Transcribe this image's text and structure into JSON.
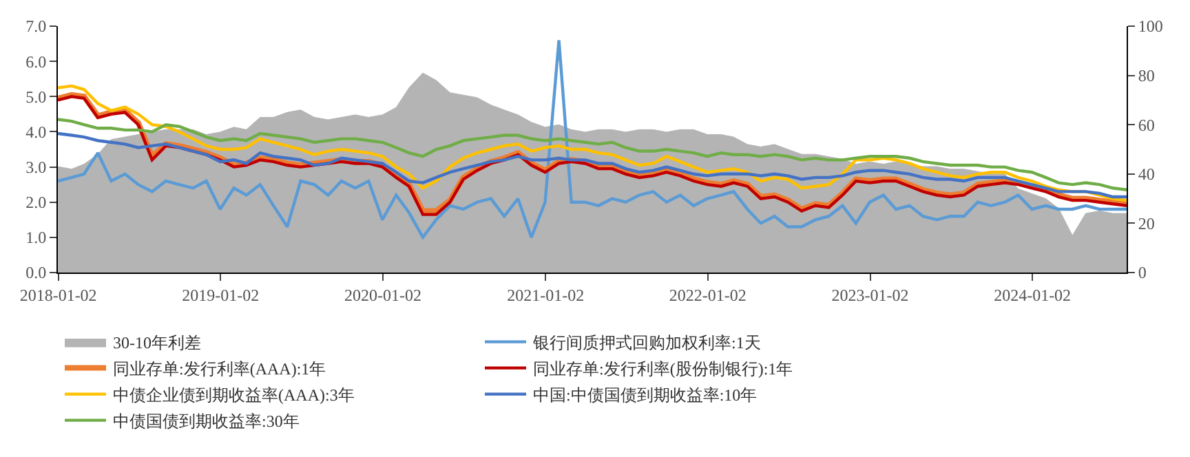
{
  "chart_data": {
    "type": "line",
    "x": [
      "2018-01",
      "2018-02",
      "2018-03",
      "2018-04",
      "2018-05",
      "2018-06",
      "2018-07",
      "2018-08",
      "2018-09",
      "2018-10",
      "2018-11",
      "2018-12",
      "2019-01",
      "2019-02",
      "2019-03",
      "2019-04",
      "2019-05",
      "2019-06",
      "2019-07",
      "2019-08",
      "2019-09",
      "2019-10",
      "2019-11",
      "2019-12",
      "2020-01",
      "2020-02",
      "2020-03",
      "2020-04",
      "2020-05",
      "2020-06",
      "2020-07",
      "2020-08",
      "2020-09",
      "2020-10",
      "2020-11",
      "2020-12",
      "2021-01",
      "2021-02",
      "2021-03",
      "2021-04",
      "2021-05",
      "2021-06",
      "2021-07",
      "2021-08",
      "2021-09",
      "2021-10",
      "2021-11",
      "2021-12",
      "2022-01",
      "2022-02",
      "2022-03",
      "2022-04",
      "2022-05",
      "2022-06",
      "2022-07",
      "2022-08",
      "2022-09",
      "2022-10",
      "2022-11",
      "2022-12",
      "2023-01",
      "2023-02",
      "2023-03",
      "2023-04",
      "2023-05",
      "2023-06",
      "2023-07",
      "2023-08",
      "2023-09",
      "2023-10",
      "2023-11",
      "2023-12",
      "2024-01",
      "2024-02",
      "2024-03",
      "2024-04",
      "2024-05",
      "2024-06",
      "2024-07",
      "2024-08"
    ],
    "series": [
      {
        "name": "30-10年利差",
        "type": "area",
        "axis": "y2",
        "color": "#b4b4b4",
        "values": [
          43,
          42,
          44,
          48,
          54,
          55,
          56,
          57,
          58,
          58,
          58,
          56,
          57,
          59,
          58,
          63,
          63,
          65,
          66,
          63,
          62,
          63,
          64,
          63,
          64,
          67,
          75,
          81,
          78,
          73,
          72,
          71,
          68,
          66,
          64,
          61,
          59,
          60,
          58,
          57,
          58,
          58,
          57,
          58,
          58,
          57,
          58,
          58,
          56,
          56,
          55,
          52,
          51,
          52,
          50,
          48,
          48,
          47,
          46,
          44,
          45,
          44,
          45,
          44,
          43,
          43,
          42,
          42,
          41,
          40,
          40,
          34,
          32,
          30,
          26,
          15,
          24,
          25,
          24,
          24
        ]
      },
      {
        "name": "银行间质押式回购加权利率:1天",
        "color": "#5b9bd5",
        "values": [
          2.6,
          2.7,
          2.8,
          3.4,
          2.6,
          2.8,
          2.5,
          2.3,
          2.6,
          2.5,
          2.4,
          2.6,
          1.8,
          2.4,
          2.2,
          2.5,
          1.9,
          1.3,
          2.6,
          2.5,
          2.2,
          2.6,
          2.4,
          2.6,
          1.5,
          2.2,
          1.7,
          1.0,
          1.5,
          1.9,
          1.8,
          2.0,
          2.1,
          1.6,
          2.1,
          1.0,
          2.0,
          6.6,
          2.0,
          2.0,
          1.9,
          2.1,
          2.0,
          2.2,
          2.3,
          2.0,
          2.2,
          1.9,
          2.1,
          2.2,
          2.3,
          1.8,
          1.4,
          1.6,
          1.3,
          1.3,
          1.5,
          1.6,
          1.9,
          1.4,
          2.0,
          2.2,
          1.8,
          1.9,
          1.6,
          1.5,
          1.6,
          1.6,
          2.0,
          1.9,
          2.0,
          2.2,
          1.8,
          1.9,
          1.8,
          1.8,
          1.9,
          1.8,
          1.8,
          1.8
        ]
      },
      {
        "name": "同业存单:发行利率(AAA):1年",
        "color": "#ed7d31",
        "values": [
          4.95,
          5.05,
          5.0,
          4.45,
          4.55,
          4.6,
          4.25,
          3.3,
          3.65,
          3.6,
          3.5,
          3.4,
          3.25,
          3.05,
          3.1,
          3.25,
          3.2,
          3.1,
          3.05,
          3.1,
          3.15,
          3.2,
          3.15,
          3.15,
          3.05,
          2.75,
          2.5,
          1.75,
          1.75,
          2.05,
          2.7,
          2.95,
          3.15,
          3.25,
          3.4,
          3.1,
          2.9,
          3.15,
          3.2,
          3.15,
          3.0,
          3.0,
          2.85,
          2.75,
          2.8,
          2.9,
          2.8,
          2.65,
          2.55,
          2.5,
          2.6,
          2.5,
          2.15,
          2.2,
          2.05,
          1.8,
          1.95,
          1.9,
          2.25,
          2.65,
          2.6,
          2.65,
          2.65,
          2.5,
          2.35,
          2.25,
          2.2,
          2.25,
          2.5,
          2.55,
          2.6,
          2.55,
          2.45,
          2.35,
          2.2,
          2.1,
          2.1,
          2.05,
          2.0,
          1.95
        ]
      },
      {
        "name": "同业存单:发行利率(股份制银行):1年",
        "color": "#c00000",
        "values": [
          4.9,
          5.0,
          4.95,
          4.4,
          4.5,
          4.55,
          4.2,
          3.2,
          3.6,
          3.55,
          3.45,
          3.35,
          3.2,
          3.0,
          3.05,
          3.2,
          3.15,
          3.05,
          3.0,
          3.05,
          3.1,
          3.15,
          3.1,
          3.1,
          3.0,
          2.7,
          2.45,
          1.65,
          1.65,
          2.0,
          2.65,
          2.9,
          3.1,
          3.2,
          3.35,
          3.05,
          2.85,
          3.1,
          3.15,
          3.1,
          2.95,
          2.95,
          2.8,
          2.7,
          2.75,
          2.85,
          2.75,
          2.6,
          2.5,
          2.45,
          2.55,
          2.45,
          2.1,
          2.15,
          2.0,
          1.75,
          1.9,
          1.85,
          2.2,
          2.6,
          2.55,
          2.6,
          2.6,
          2.45,
          2.3,
          2.2,
          2.15,
          2.2,
          2.45,
          2.5,
          2.55,
          2.5,
          2.4,
          2.3,
          2.15,
          2.05,
          2.05,
          2.0,
          1.95,
          1.9
        ]
      },
      {
        "name": "中债企业债到期收益率(AAA):3年",
        "color": "#ffc000",
        "values": [
          5.25,
          5.3,
          5.2,
          4.8,
          4.6,
          4.7,
          4.5,
          4.2,
          4.15,
          4.0,
          3.8,
          3.6,
          3.5,
          3.5,
          3.55,
          3.8,
          3.7,
          3.6,
          3.5,
          3.35,
          3.45,
          3.5,
          3.45,
          3.4,
          3.3,
          3.0,
          2.8,
          2.4,
          2.6,
          3.0,
          3.25,
          3.4,
          3.5,
          3.6,
          3.65,
          3.45,
          3.55,
          3.6,
          3.5,
          3.5,
          3.4,
          3.35,
          3.2,
          3.05,
          3.1,
          3.3,
          3.15,
          3.0,
          2.85,
          2.9,
          2.95,
          2.85,
          2.6,
          2.7,
          2.65,
          2.4,
          2.45,
          2.5,
          2.8,
          3.2,
          3.2,
          3.25,
          3.2,
          3.1,
          2.95,
          2.85,
          2.75,
          2.7,
          2.8,
          2.85,
          2.85,
          2.7,
          2.6,
          2.45,
          2.35,
          2.3,
          2.3,
          2.2,
          2.1,
          2.05
        ]
      },
      {
        "name": "中国:中债国债到期收益率:10年",
        "color": "#4472c4",
        "values": [
          3.95,
          3.9,
          3.85,
          3.75,
          3.7,
          3.65,
          3.55,
          3.6,
          3.65,
          3.55,
          3.45,
          3.35,
          3.15,
          3.2,
          3.1,
          3.4,
          3.3,
          3.25,
          3.2,
          3.05,
          3.1,
          3.25,
          3.2,
          3.15,
          3.1,
          2.85,
          2.6,
          2.55,
          2.7,
          2.85,
          2.95,
          3.05,
          3.15,
          3.2,
          3.3,
          3.2,
          3.2,
          3.25,
          3.2,
          3.2,
          3.1,
          3.1,
          2.95,
          2.85,
          2.9,
          3.0,
          2.9,
          2.8,
          2.75,
          2.8,
          2.8,
          2.8,
          2.75,
          2.8,
          2.75,
          2.65,
          2.7,
          2.7,
          2.75,
          2.85,
          2.9,
          2.9,
          2.85,
          2.8,
          2.7,
          2.65,
          2.65,
          2.6,
          2.7,
          2.7,
          2.7,
          2.6,
          2.5,
          2.4,
          2.3,
          2.3,
          2.3,
          2.25,
          2.15,
          2.15
        ]
      },
      {
        "name": "中债国债到期收益率:30年",
        "color": "#70ad47",
        "values": [
          4.35,
          4.3,
          4.2,
          4.1,
          4.1,
          4.05,
          4.05,
          4.0,
          4.2,
          4.15,
          4.0,
          3.85,
          3.75,
          3.8,
          3.75,
          3.95,
          3.9,
          3.85,
          3.8,
          3.7,
          3.75,
          3.8,
          3.8,
          3.75,
          3.7,
          3.55,
          3.4,
          3.3,
          3.5,
          3.6,
          3.75,
          3.8,
          3.85,
          3.9,
          3.9,
          3.8,
          3.75,
          3.8,
          3.75,
          3.7,
          3.65,
          3.7,
          3.55,
          3.45,
          3.45,
          3.5,
          3.45,
          3.4,
          3.3,
          3.4,
          3.35,
          3.35,
          3.3,
          3.35,
          3.3,
          3.2,
          3.25,
          3.2,
          3.2,
          3.25,
          3.3,
          3.3,
          3.3,
          3.25,
          3.15,
          3.1,
          3.05,
          3.05,
          3.05,
          3.0,
          3.0,
          2.9,
          2.85,
          2.7,
          2.55,
          2.5,
          2.55,
          2.5,
          2.4,
          2.35
        ]
      }
    ],
    "xlim": [
      "2018-01-01",
      "2024-08-01"
    ],
    "xticks": [
      "2018-01-02",
      "2019-01-02",
      "2020-01-02",
      "2021-01-02",
      "2022-01-02",
      "2023-01-02",
      "2024-01-02"
    ],
    "ylim": [
      0,
      7
    ],
    "yticks": [
      {
        "value": 0,
        "label": "0.0"
      },
      {
        "value": 1,
        "label": "1.0"
      },
      {
        "value": 2,
        "label": "2.0"
      },
      {
        "value": 3,
        "label": "3.0"
      },
      {
        "value": 4,
        "label": "4.0"
      },
      {
        "value": 5,
        "label": "5.0"
      },
      {
        "value": 6,
        "label": "6.0"
      },
      {
        "value": 7,
        "label": "7.0"
      }
    ],
    "y2lim": [
      0,
      100
    ],
    "y2ticks": [
      0,
      20,
      40,
      60,
      80,
      100
    ],
    "legend": "bottom",
    "marker": "none",
    "line_style": "solid"
  }
}
